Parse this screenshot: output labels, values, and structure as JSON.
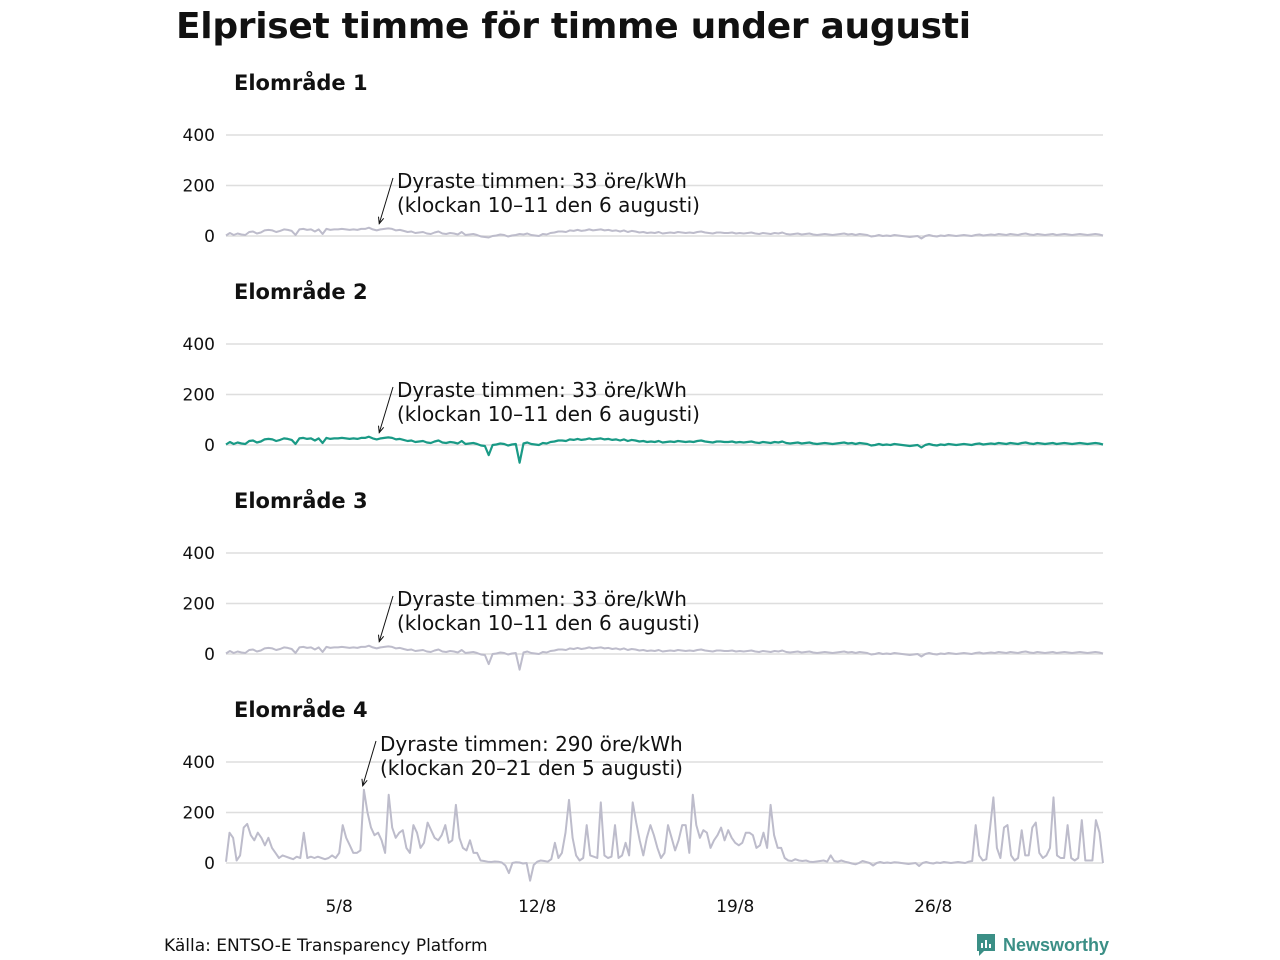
{
  "title": "Elpriset timme för timme under augusti",
  "source": "Källa: ENTSO-E Transparency Platform",
  "brand": {
    "name": "Newsworthy",
    "icon": "newsworthy-logo-icon",
    "color": "#3b8f86"
  },
  "colors": {
    "highlight": "#1a9a86",
    "muted": "#bdbccb",
    "grid": "#dedede"
  },
  "chart_data": [
    {
      "type": "line",
      "title": "Elområde 1",
      "highlighted": false,
      "ylim": [
        -30,
        420
      ],
      "yticks": [
        0,
        200,
        400
      ],
      "x_ticks": [
        "5/8",
        "12/8",
        "19/8",
        "26/8"
      ],
      "x_tick_days": [
        5,
        12,
        19,
        26
      ],
      "annotation": {
        "line1": "Dyraste timmen: 33 öre/kWh",
        "line2": "(klockan 10–11 den 6 augusti)",
        "day": 6,
        "hour": 10,
        "value": 33
      },
      "series": [
        {
          "values": [
            2,
            12,
            4,
            10,
            6,
            4,
            16,
            18,
            10,
            14,
            22,
            24,
            22,
            16,
            20,
            26,
            24,
            20,
            4,
            26,
            28,
            24,
            26,
            18,
            26,
            8,
            28,
            24,
            26,
            26,
            28,
            26,
            24,
            26,
            24,
            28,
            28,
            33,
            26,
            22,
            26,
            28,
            30,
            28,
            22,
            24,
            20,
            16,
            18,
            12,
            14,
            16,
            10,
            8,
            14,
            18,
            10,
            8,
            12,
            10,
            6,
            16,
            4,
            6,
            8,
            4,
            -2,
            -4,
            -6,
            0,
            2,
            6,
            4,
            -2,
            2,
            4,
            8,
            6,
            10,
            4,
            2,
            0,
            8,
            6,
            12,
            14,
            18,
            18,
            16,
            22,
            20,
            24,
            20,
            22,
            26,
            22,
            24,
            26,
            22,
            24,
            20,
            22,
            18,
            22,
            16,
            20,
            18,
            14,
            16,
            12,
            14,
            12,
            16,
            10,
            12,
            14,
            12,
            16,
            14,
            12,
            14,
            12,
            16,
            18,
            14,
            12,
            10,
            14,
            14,
            12,
            12,
            14,
            10,
            12,
            10,
            12,
            14,
            10,
            8,
            12,
            10,
            8,
            12,
            10,
            14,
            8,
            6,
            8,
            10,
            6,
            8,
            10,
            6,
            4,
            6,
            8,
            6,
            4,
            6,
            8,
            10,
            6,
            8,
            4,
            8,
            6,
            4,
            -2,
            0,
            4,
            0,
            2,
            0,
            4,
            2,
            0,
            -2,
            -4,
            -2,
            0,
            -10,
            0,
            4,
            0,
            -2,
            2,
            0,
            4,
            2,
            0,
            2,
            4,
            2,
            0,
            4,
            6,
            2,
            4,
            6,
            4,
            8,
            6,
            4,
            8,
            6,
            4,
            8,
            10,
            6,
            4,
            8,
            6,
            4,
            6,
            8,
            4,
            6,
            8,
            6,
            4,
            6,
            8,
            6,
            4,
            6,
            8,
            6,
            2
          ]
        }
      ]
    },
    {
      "type": "line",
      "title": "Elområde 2",
      "highlighted": true,
      "ylim": [
        -30,
        420
      ],
      "yticks": [
        0,
        200,
        400
      ],
      "x_ticks": [
        "5/8",
        "12/8",
        "19/8",
        "26/8"
      ],
      "x_tick_days": [
        5,
        12,
        19,
        26
      ],
      "annotation": {
        "line1": "Dyraste timmen: 33 öre/kWh",
        "line2": "(klockan 10–11 den 6 augusti)",
        "day": 6,
        "hour": 10,
        "value": 33
      },
      "series": [
        {
          "values": [
            2,
            12,
            4,
            10,
            6,
            4,
            16,
            18,
            10,
            14,
            22,
            24,
            22,
            16,
            20,
            26,
            24,
            20,
            4,
            26,
            28,
            24,
            26,
            18,
            26,
            8,
            28,
            24,
            26,
            26,
            28,
            26,
            24,
            26,
            24,
            28,
            28,
            33,
            26,
            22,
            26,
            28,
            30,
            28,
            22,
            24,
            20,
            16,
            18,
            12,
            14,
            16,
            10,
            8,
            14,
            18,
            10,
            8,
            12,
            10,
            6,
            16,
            4,
            6,
            8,
            4,
            -2,
            -4,
            -40,
            0,
            2,
            6,
            4,
            -2,
            2,
            4,
            -70,
            6,
            10,
            4,
            2,
            0,
            8,
            6,
            12,
            14,
            18,
            18,
            16,
            22,
            20,
            24,
            20,
            22,
            26,
            22,
            24,
            26,
            22,
            24,
            20,
            22,
            18,
            22,
            16,
            20,
            18,
            14,
            16,
            12,
            14,
            12,
            16,
            10,
            12,
            14,
            12,
            16,
            14,
            12,
            14,
            12,
            16,
            18,
            14,
            12,
            10,
            14,
            14,
            12,
            12,
            14,
            10,
            12,
            10,
            12,
            14,
            10,
            8,
            12,
            10,
            8,
            12,
            10,
            14,
            8,
            6,
            8,
            10,
            6,
            8,
            10,
            6,
            4,
            6,
            8,
            6,
            4,
            6,
            8,
            10,
            6,
            8,
            4,
            8,
            6,
            4,
            -2,
            0,
            4,
            0,
            2,
            0,
            4,
            2,
            0,
            -2,
            -4,
            -2,
            0,
            -10,
            0,
            4,
            0,
            -2,
            2,
            0,
            4,
            2,
            0,
            2,
            4,
            2,
            0,
            4,
            6,
            2,
            4,
            6,
            4,
            8,
            6,
            4,
            8,
            6,
            4,
            8,
            10,
            6,
            4,
            8,
            6,
            4,
            6,
            8,
            4,
            6,
            8,
            6,
            4,
            6,
            8,
            6,
            4,
            6,
            8,
            6,
            2
          ]
        }
      ]
    },
    {
      "type": "line",
      "title": "Elområde 3",
      "highlighted": false,
      "ylim": [
        -30,
        420
      ],
      "yticks": [
        0,
        200,
        400
      ],
      "x_ticks": [
        "5/8",
        "12/8",
        "19/8",
        "26/8"
      ],
      "x_tick_days": [
        5,
        12,
        19,
        26
      ],
      "annotation": {
        "line1": "Dyraste timmen: 33 öre/kWh",
        "line2": "(klockan 10–11 den 6 augusti)",
        "day": 6,
        "hour": 10,
        "value": 33
      },
      "series": [
        {
          "values": [
            2,
            12,
            4,
            10,
            6,
            4,
            16,
            18,
            10,
            14,
            22,
            24,
            22,
            16,
            20,
            26,
            24,
            20,
            4,
            26,
            28,
            24,
            26,
            18,
            26,
            8,
            28,
            24,
            26,
            26,
            28,
            26,
            24,
            26,
            24,
            28,
            28,
            33,
            26,
            22,
            26,
            28,
            30,
            28,
            22,
            24,
            20,
            16,
            18,
            12,
            14,
            16,
            10,
            8,
            14,
            18,
            10,
            8,
            12,
            10,
            6,
            16,
            4,
            6,
            8,
            4,
            -2,
            -4,
            -40,
            0,
            2,
            6,
            4,
            -2,
            2,
            4,
            -62,
            6,
            10,
            4,
            2,
            0,
            8,
            6,
            12,
            14,
            18,
            18,
            16,
            22,
            20,
            24,
            20,
            22,
            26,
            22,
            24,
            26,
            22,
            24,
            20,
            22,
            18,
            22,
            16,
            20,
            18,
            14,
            16,
            12,
            14,
            12,
            16,
            10,
            12,
            14,
            12,
            16,
            14,
            12,
            14,
            12,
            16,
            18,
            14,
            12,
            10,
            14,
            14,
            12,
            12,
            14,
            10,
            12,
            10,
            12,
            14,
            10,
            8,
            12,
            10,
            8,
            12,
            10,
            14,
            8,
            6,
            8,
            10,
            6,
            8,
            10,
            6,
            4,
            6,
            8,
            6,
            4,
            6,
            8,
            10,
            6,
            8,
            4,
            8,
            6,
            4,
            -2,
            0,
            4,
            0,
            2,
            0,
            4,
            2,
            0,
            -2,
            -4,
            -2,
            0,
            -10,
            0,
            4,
            0,
            -2,
            2,
            0,
            4,
            2,
            0,
            2,
            4,
            2,
            0,
            4,
            6,
            2,
            4,
            6,
            4,
            8,
            6,
            4,
            8,
            6,
            4,
            8,
            10,
            6,
            4,
            8,
            6,
            4,
            6,
            8,
            4,
            6,
            8,
            6,
            4,
            6,
            8,
            6,
            4,
            6,
            8,
            6,
            2
          ]
        }
      ]
    },
    {
      "type": "line",
      "title": "Elområde 4",
      "highlighted": false,
      "ylim": [
        -30,
        420
      ],
      "yticks": [
        0,
        200,
        400
      ],
      "x_ticks": [
        "5/8",
        "12/8",
        "19/8",
        "26/8"
      ],
      "x_tick_days": [
        5,
        12,
        19,
        26
      ],
      "annotation": {
        "line1": "Dyraste timmen: 290 öre/kWh",
        "line2": "(klockan 20–21 den 5 augusti)",
        "day": 5,
        "hour": 20,
        "value": 290
      },
      "series": [
        {
          "values": [
            5,
            120,
            100,
            10,
            30,
            140,
            155,
            110,
            90,
            120,
            100,
            70,
            100,
            60,
            40,
            20,
            30,
            25,
            20,
            15,
            25,
            20,
            120,
            20,
            25,
            20,
            25,
            20,
            15,
            20,
            30,
            20,
            40,
            150,
            100,
            70,
            40,
            40,
            50,
            290,
            200,
            140,
            110,
            120,
            90,
            40,
            270,
            140,
            100,
            120,
            130,
            60,
            40,
            150,
            120,
            60,
            80,
            160,
            130,
            100,
            90,
            110,
            150,
            80,
            90,
            230,
            100,
            60,
            50,
            90,
            40,
            40,
            10,
            8,
            5,
            4,
            6,
            5,
            2,
            -10,
            -40,
            0,
            3,
            2,
            -2,
            0,
            -70,
            -8,
            5,
            10,
            8,
            5,
            15,
            80,
            20,
            40,
            120,
            250,
            100,
            30,
            10,
            20,
            150,
            30,
            25,
            20,
            240,
            30,
            20,
            25,
            150,
            20,
            30,
            80,
            30,
            240,
            160,
            90,
            30,
            100,
            150,
            110,
            60,
            20,
            40,
            150,
            100,
            50,
            90,
            150,
            150,
            40,
            270,
            150,
            100,
            130,
            120,
            60,
            90,
            110,
            140,
            90,
            130,
            100,
            80,
            70,
            80,
            120,
            120,
            110,
            60,
            70,
            120,
            60,
            230,
            110,
            60,
            60,
            20,
            10,
            8,
            15,
            10,
            8,
            10,
            5,
            4,
            6,
            8,
            10,
            5,
            30,
            8,
            5,
            10,
            5,
            2,
            -2,
            -5,
            0,
            8,
            4,
            0,
            -10,
            0,
            4,
            0,
            2,
            0,
            3,
            2,
            0,
            -2,
            -4,
            -2,
            0,
            -12,
            0,
            4,
            0,
            -2,
            2,
            0,
            4,
            2,
            0,
            2,
            4,
            2,
            0,
            5,
            8,
            150,
            30,
            10,
            15,
            130,
            260,
            60,
            20,
            140,
            150,
            30,
            10,
            20,
            130,
            30,
            30,
            140,
            160,
            40,
            20,
            30,
            60,
            260,
            30,
            20,
            20,
            150,
            20,
            10,
            20,
            170,
            10,
            10,
            10,
            170,
            120,
            0
          ]
        }
      ]
    }
  ]
}
